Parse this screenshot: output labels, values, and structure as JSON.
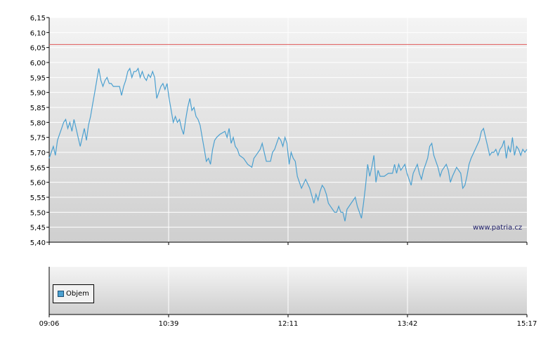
{
  "chart_data": {
    "type": "line",
    "ylim": [
      5.4,
      6.15
    ],
    "y_ticks": [
      "5,40",
      "5,45",
      "5,50",
      "5,55",
      "5,60",
      "5,65",
      "5,70",
      "5,75",
      "5,80",
      "5,85",
      "5,90",
      "5,95",
      "6,00",
      "6,05",
      "6,10",
      "6,15"
    ],
    "x_ticks": [
      "09:06",
      "10:39",
      "12:11",
      "13:42",
      "15:17"
    ],
    "reference_line": 6.06,
    "series": [
      {
        "color": "#4ba0d0",
        "points": [
          [
            0,
            5.68
          ],
          [
            2,
            5.7
          ],
          [
            4,
            5.72
          ],
          [
            6,
            5.69
          ],
          [
            8,
            5.74
          ],
          [
            10,
            5.76
          ],
          [
            12,
            5.78
          ],
          [
            14,
            5.8
          ],
          [
            16,
            5.81
          ],
          [
            18,
            5.78
          ],
          [
            20,
            5.8
          ],
          [
            22,
            5.77
          ],
          [
            24,
            5.81
          ],
          [
            26,
            5.78
          ],
          [
            28,
            5.75
          ],
          [
            30,
            5.72
          ],
          [
            32,
            5.75
          ],
          [
            34,
            5.78
          ],
          [
            36,
            5.74
          ],
          [
            38,
            5.79
          ],
          [
            40,
            5.82
          ],
          [
            42,
            5.86
          ],
          [
            44,
            5.9
          ],
          [
            46,
            5.94
          ],
          [
            48,
            5.98
          ],
          [
            50,
            5.94
          ],
          [
            52,
            5.92
          ],
          [
            54,
            5.94
          ],
          [
            56,
            5.95
          ],
          [
            58,
            5.93
          ],
          [
            60,
            5.93
          ],
          [
            62,
            5.92
          ],
          [
            64,
            5.92
          ],
          [
            66,
            5.92
          ],
          [
            68,
            5.92
          ],
          [
            70,
            5.89
          ],
          [
            72,
            5.92
          ],
          [
            74,
            5.94
          ],
          [
            76,
            5.97
          ],
          [
            78,
            5.98
          ],
          [
            80,
            5.95
          ],
          [
            82,
            5.97
          ],
          [
            84,
            5.97
          ],
          [
            86,
            5.98
          ],
          [
            88,
            5.95
          ],
          [
            90,
            5.97
          ],
          [
            92,
            5.95
          ],
          [
            94,
            5.94
          ],
          [
            96,
            5.96
          ],
          [
            98,
            5.95
          ],
          [
            100,
            5.97
          ],
          [
            102,
            5.95
          ],
          [
            104,
            5.88
          ],
          [
            106,
            5.9
          ],
          [
            108,
            5.92
          ],
          [
            110,
            5.93
          ],
          [
            112,
            5.91
          ],
          [
            114,
            5.93
          ],
          [
            116,
            5.88
          ],
          [
            118,
            5.84
          ],
          [
            120,
            5.8
          ],
          [
            122,
            5.82
          ],
          [
            124,
            5.8
          ],
          [
            126,
            5.81
          ],
          [
            128,
            5.78
          ],
          [
            130,
            5.76
          ],
          [
            132,
            5.81
          ],
          [
            134,
            5.85
          ],
          [
            136,
            5.88
          ],
          [
            138,
            5.84
          ],
          [
            140,
            5.85
          ],
          [
            142,
            5.82
          ],
          [
            144,
            5.81
          ],
          [
            146,
            5.79
          ],
          [
            148,
            5.75
          ],
          [
            150,
            5.71
          ],
          [
            152,
            5.67
          ],
          [
            154,
            5.68
          ],
          [
            156,
            5.66
          ],
          [
            158,
            5.71
          ],
          [
            160,
            5.74
          ],
          [
            162,
            5.75
          ],
          [
            165,
            5.76
          ],
          [
            170,
            5.77
          ],
          [
            172,
            5.75
          ],
          [
            174,
            5.78
          ],
          [
            176,
            5.73
          ],
          [
            178,
            5.75
          ],
          [
            180,
            5.72
          ],
          [
            182,
            5.71
          ],
          [
            184,
            5.69
          ],
          [
            188,
            5.68
          ],
          [
            192,
            5.66
          ],
          [
            196,
            5.65
          ],
          [
            198,
            5.68
          ],
          [
            200,
            5.69
          ],
          [
            204,
            5.71
          ],
          [
            206,
            5.73
          ],
          [
            208,
            5.7
          ],
          [
            210,
            5.67
          ],
          [
            214,
            5.67
          ],
          [
            216,
            5.7
          ],
          [
            218,
            5.71
          ],
          [
            220,
            5.73
          ],
          [
            222,
            5.75
          ],
          [
            224,
            5.74
          ],
          [
            226,
            5.72
          ],
          [
            228,
            5.75
          ],
          [
            230,
            5.73
          ],
          [
            232,
            5.66
          ],
          [
            234,
            5.7
          ],
          [
            236,
            5.68
          ],
          [
            238,
            5.67
          ],
          [
            240,
            5.62
          ],
          [
            244,
            5.58
          ],
          [
            248,
            5.61
          ],
          [
            252,
            5.58
          ],
          [
            256,
            5.53
          ],
          [
            258,
            5.56
          ],
          [
            260,
            5.54
          ],
          [
            262,
            5.57
          ],
          [
            264,
            5.59
          ],
          [
            266,
            5.58
          ],
          [
            268,
            5.56
          ],
          [
            270,
            5.53
          ],
          [
            272,
            5.52
          ],
          [
            274,
            5.51
          ],
          [
            276,
            5.5
          ],
          [
            278,
            5.5
          ],
          [
            280,
            5.52
          ],
          [
            282,
            5.5
          ],
          [
            284,
            5.5
          ],
          [
            286,
            5.47
          ],
          [
            288,
            5.51
          ],
          [
            292,
            5.53
          ],
          [
            296,
            5.55
          ],
          [
            298,
            5.52
          ],
          [
            300,
            5.5
          ],
          [
            302,
            5.48
          ],
          [
            304,
            5.53
          ],
          [
            306,
            5.59
          ],
          [
            308,
            5.66
          ],
          [
            310,
            5.62
          ],
          [
            312,
            5.65
          ],
          [
            314,
            5.69
          ],
          [
            316,
            5.6
          ],
          [
            318,
            5.64
          ],
          [
            320,
            5.62
          ],
          [
            324,
            5.62
          ],
          [
            328,
            5.63
          ],
          [
            332,
            5.63
          ],
          [
            334,
            5.66
          ],
          [
            336,
            5.63
          ],
          [
            338,
            5.66
          ],
          [
            340,
            5.64
          ],
          [
            342,
            5.65
          ],
          [
            344,
            5.66
          ],
          [
            346,
            5.63
          ],
          [
            350,
            5.59
          ],
          [
            352,
            5.63
          ],
          [
            356,
            5.66
          ],
          [
            358,
            5.63
          ],
          [
            360,
            5.61
          ],
          [
            362,
            5.64
          ],
          [
            364,
            5.66
          ],
          [
            366,
            5.68
          ],
          [
            368,
            5.72
          ],
          [
            370,
            5.73
          ],
          [
            372,
            5.69
          ],
          [
            376,
            5.65
          ],
          [
            378,
            5.62
          ],
          [
            380,
            5.64
          ],
          [
            384,
            5.66
          ],
          [
            386,
            5.64
          ],
          [
            388,
            5.6
          ],
          [
            390,
            5.62
          ],
          [
            394,
            5.65
          ],
          [
            398,
            5.63
          ],
          [
            400,
            5.58
          ],
          [
            402,
            5.59
          ],
          [
            404,
            5.62
          ],
          [
            406,
            5.66
          ],
          [
            408,
            5.68
          ],
          [
            412,
            5.71
          ],
          [
            416,
            5.74
          ],
          [
            418,
            5.77
          ],
          [
            420,
            5.78
          ],
          [
            422,
            5.75
          ],
          [
            424,
            5.72
          ],
          [
            426,
            5.69
          ],
          [
            428,
            5.7
          ],
          [
            430,
            5.7
          ],
          [
            432,
            5.71
          ],
          [
            434,
            5.69
          ],
          [
            436,
            5.71
          ],
          [
            438,
            5.72
          ],
          [
            440,
            5.74
          ],
          [
            442,
            5.68
          ],
          [
            444,
            5.72
          ],
          [
            446,
            5.7
          ],
          [
            448,
            5.75
          ],
          [
            450,
            5.69
          ],
          [
            452,
            5.72
          ],
          [
            454,
            5.71
          ],
          [
            456,
            5.69
          ],
          [
            458,
            5.71
          ],
          [
            460,
            5.7
          ],
          [
            462,
            5.71
          ]
        ]
      }
    ],
    "legend": [
      "Objem"
    ]
  },
  "watermark": "www.patria.cz"
}
